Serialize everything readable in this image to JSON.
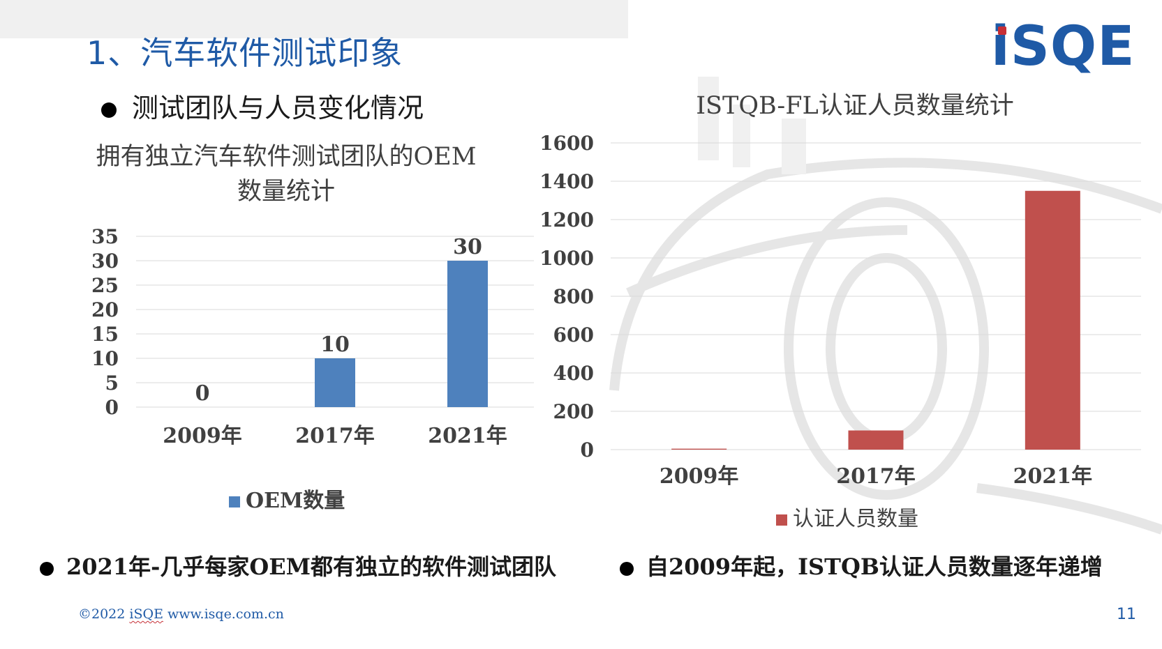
{
  "slide": {
    "title": "1、汽车软件测试印象",
    "subtitle": "测试团队与人员变化情况",
    "logo_text": "iSQE",
    "bottom_left": "2021年-几乎每家OEM都有独立的软件测试团队",
    "bottom_right": "自2009年起，ISTQB认证人员数量逐年递增",
    "footer": {
      "copyright": "©2022",
      "brand": "iSQE",
      "url": "www.isqe.com.cn"
    },
    "page_number": "11"
  },
  "colors": {
    "accent": "#1f5aa6",
    "series1": "#4e81bd",
    "series2": "#c0504d",
    "logo_dot": "#c62f36"
  },
  "chart_data": [
    {
      "type": "bar",
      "title_line1": "拥有独立汽车软件测试团队的OEM",
      "title_line2": "数量统计",
      "categories": [
        "2009年",
        "2017年",
        "2021年"
      ],
      "series": [
        {
          "name": "OEM数量",
          "values": [
            0,
            10,
            30
          ]
        }
      ],
      "data_labels": [
        "0",
        "10",
        "30"
      ],
      "ylim": [
        0,
        35
      ],
      "yticks": [
        0,
        5,
        10,
        15,
        20,
        25,
        30,
        35
      ],
      "grid": true,
      "legend": "bottom"
    },
    {
      "type": "bar",
      "title": "ISTQB-FL认证人员数量统计",
      "categories": [
        "2009年",
        "2017年",
        "2021年"
      ],
      "series": [
        {
          "name": "认证人员数量",
          "values": [
            5,
            100,
            1350
          ]
        }
      ],
      "ylim": [
        0,
        1600
      ],
      "yticks": [
        0,
        200,
        400,
        600,
        800,
        1000,
        1200,
        1400,
        1600
      ],
      "grid": true,
      "legend": "bottom"
    }
  ]
}
